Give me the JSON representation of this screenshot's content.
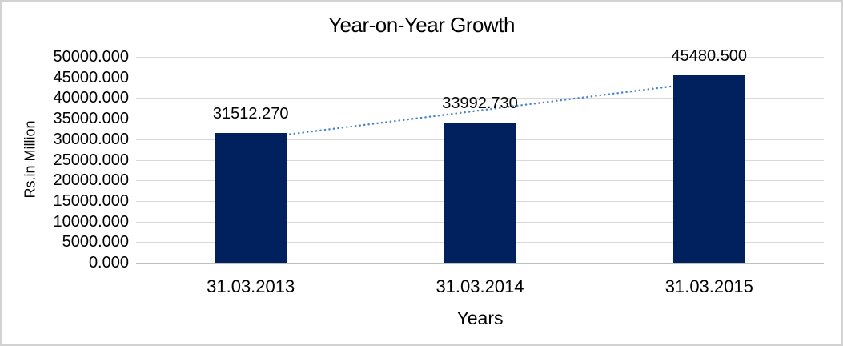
{
  "chart_data": {
    "type": "bar",
    "title": "Year-on-Year Growth",
    "xlabel": "Years",
    "ylabel": "Rs.in Million",
    "categories": [
      "31.03.2013",
      "31.03.2014",
      "31.03.2015"
    ],
    "values": [
      31512.27,
      33992.73,
      45480.5
    ],
    "data_labels": [
      "31512.270",
      "33992.730",
      "45480.500"
    ],
    "y_ticks": [
      "50000.000",
      "45000.000",
      "40000.000",
      "35000.000",
      "30000.000",
      "25000.000",
      "20000.000",
      "15000.000",
      "10000.000",
      "5000.000",
      "0.000"
    ],
    "ylim": [
      0,
      50000
    ],
    "y_tick_step": 5000,
    "grid": true,
    "legend": "none",
    "bar_color": "#01215e",
    "gridline_color": "#d9d9d9",
    "axis_line_color": "#bfbfbf",
    "frame_border_color": "#d2d2d2",
    "text_color": "#000000",
    "trendline": {
      "type": "linear",
      "style": "dotted",
      "color": "#4e86c6"
    }
  }
}
